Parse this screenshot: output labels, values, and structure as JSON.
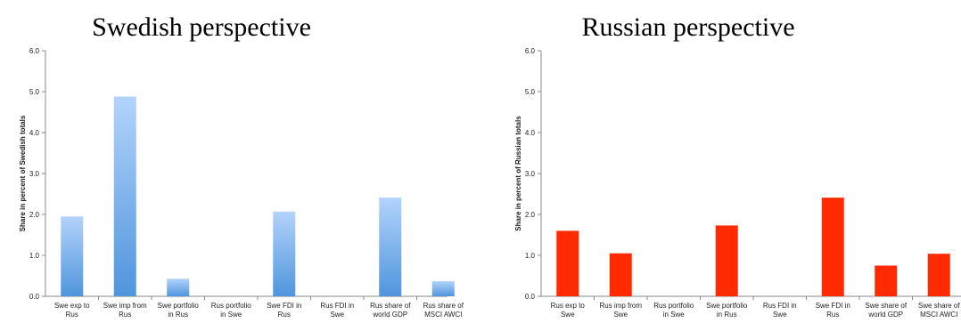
{
  "chart_data": [
    {
      "type": "bar",
      "title": "Swedish perspective",
      "xlabel": "",
      "ylabel": "Share in percent of Swedish totals",
      "ylim": [
        0,
        6
      ],
      "yticks": [
        "0.0",
        "1.0",
        "2.0",
        "3.0",
        "4.0",
        "5.0",
        "6.0"
      ],
      "grid": false,
      "legend": "none",
      "categories": [
        [
          "Swe exp to",
          "Rus"
        ],
        [
          "Swe imp from",
          "Rus"
        ],
        [
          "Swe portfolio",
          "in Rus"
        ],
        [
          "Rus portfolio",
          "in Swe"
        ],
        [
          "Swe FDI in",
          "Rus"
        ],
        [
          "Rus FDI in",
          "Swe"
        ],
        [
          "Rus share of",
          "world GDP"
        ],
        [
          "Rus share of",
          "MSCI AWCI"
        ]
      ],
      "values": [
        1.95,
        4.88,
        0.43,
        0,
        2.07,
        0,
        2.41,
        0.37
      ],
      "colors": {
        "bar_top": "#b3d3fb",
        "bar_bottom": "#4f95dd"
      }
    },
    {
      "type": "bar",
      "title": "Russian perspective",
      "xlabel": "",
      "ylabel": "Share in percent of Russian totals",
      "ylim": [
        0,
        6
      ],
      "yticks": [
        "0.0",
        "1.0",
        "2.0",
        "3.0",
        "4.0",
        "5.0",
        "6.0"
      ],
      "grid": false,
      "legend": "none",
      "categories": [
        [
          "Rus exp to",
          "Swe"
        ],
        [
          "Rus imp from",
          "Swe"
        ],
        [
          "Rus portfolio",
          "in Swe"
        ],
        [
          "Swe portfolio",
          "in Rus"
        ],
        [
          "Rus FDI in",
          "Swe"
        ],
        [
          "Swe FDI in",
          "Rus"
        ],
        [
          "Swe share of",
          "world GDP"
        ],
        [
          "Swe share of",
          "MSCI AWCI"
        ]
      ],
      "values": [
        1.6,
        1.05,
        0,
        1.73,
        0,
        2.41,
        0.75,
        1.04
      ],
      "colors": {
        "bar": "#ff2a00"
      }
    }
  ]
}
